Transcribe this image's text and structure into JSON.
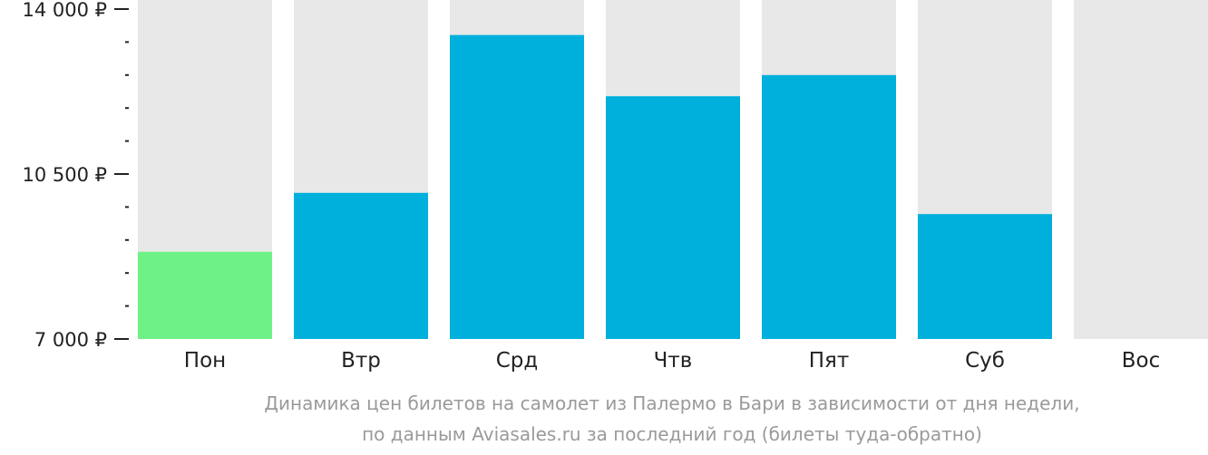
{
  "chart_data": {
    "type": "bar",
    "categories": [
      "Пон",
      "Втр",
      "Срд",
      "Чтв",
      "Пят",
      "Суб",
      "Вос"
    ],
    "values": [
      8850,
      10100,
      13450,
      12150,
      12600,
      9650,
      null
    ],
    "ylim": [
      7000,
      14000
    ],
    "y_ticks": [
      {
        "value": 7000,
        "label": "7 000 ₽"
      },
      {
        "value": 10500,
        "label": "10 500 ₽"
      },
      {
        "value": 14000,
        "label": "14 000 ₽"
      }
    ],
    "minor_tick_step": 700,
    "highlight_index": 0,
    "colors": {
      "bar": "#00b0dc",
      "highlight": "#6ef287",
      "background_bar": "#e8e8e8",
      "axis": "#222222"
    }
  },
  "caption": {
    "line1": "Динамика цен билетов на самолет из Палермо в Бари в зависимости от дня недели,",
    "line2": "по данным Aviasales.ru за последний год (билеты туда-обратно)"
  }
}
